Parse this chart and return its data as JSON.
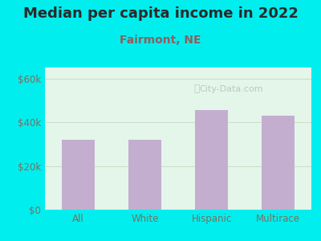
{
  "title": "Median per capita income in 2022",
  "subtitle": "Fairmont, NE",
  "categories": [
    "All",
    "White",
    "Hispanic",
    "Multirace"
  ],
  "values": [
    32000,
    32000,
    45500,
    43000
  ],
  "bar_color": "#c4aed0",
  "background_outer": "#00EEEE",
  "background_inner": "#e4f5ea",
  "title_color": "#2a2a2a",
  "subtitle_color": "#8b6060",
  "tick_color": "#7a7060",
  "ytick_labels": [
    "$0",
    "$20k",
    "$40k",
    "$60k"
  ],
  "ytick_values": [
    0,
    20000,
    40000,
    60000
  ],
  "ylim": [
    0,
    65000
  ],
  "watermark": "City-Data.com",
  "title_fontsize": 13,
  "subtitle_fontsize": 10
}
